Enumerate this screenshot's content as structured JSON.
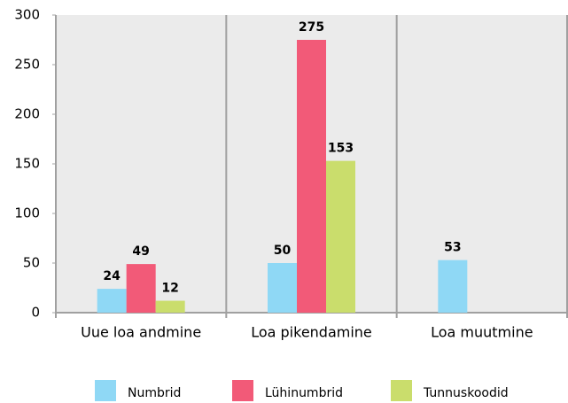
{
  "chart_data": {
    "type": "bar",
    "categories": [
      "Uue loa andmine",
      "Loa pikendamine",
      "Loa muutmine"
    ],
    "series": [
      {
        "name": "Numbrid",
        "color": "#8fd8f5",
        "values": [
          24,
          50,
          53
        ]
      },
      {
        "name": "Lühinumbrid",
        "color": "#f25a78",
        "values": [
          49,
          275,
          null
        ]
      },
      {
        "name": "Tunnuskoodid",
        "color": "#cadd6c",
        "values": [
          12,
          153,
          null
        ]
      }
    ],
    "ylim": [
      0,
      300
    ],
    "yticks": [
      0,
      50,
      100,
      150,
      200,
      250,
      300
    ],
    "legend": "bottom"
  }
}
